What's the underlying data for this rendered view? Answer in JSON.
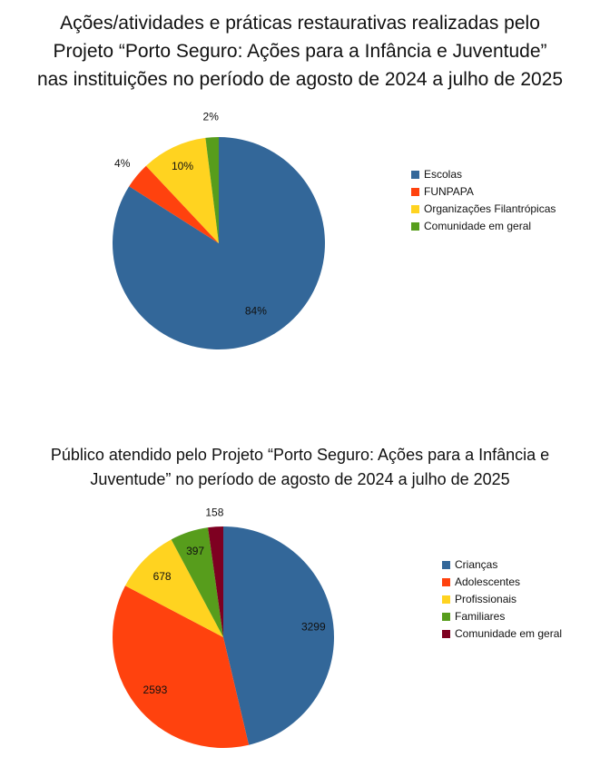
{
  "chart1": {
    "title_lines": [
      "Ações/atividades e práticas restaurativas realizadas pelo",
      "Projeto “Porto Seguro: Ações para a Infância e Juventude”",
      "nas instituições no período de agosto de 2024 a julho de 2025"
    ],
    "chart_data": {
      "type": "pie",
      "categories": [
        "Escolas",
        "FUNPAPA",
        "Organizações Filantrópicas",
        "Comunidade em geral"
      ],
      "values": [
        84,
        4,
        10,
        2
      ],
      "labels": [
        "84%",
        "4%",
        "10%",
        "2%"
      ],
      "colors": [
        "#336799",
        "#ff420e",
        "#ffd320",
        "#579d1c"
      ],
      "legend": "right"
    }
  },
  "chart2": {
    "title_lines": [
      "Público atendido pelo Projeto “Porto Seguro: Ações para a Infância e",
      "Juventude” no período de agosto de 2024 a julho de 2025"
    ],
    "chart_data": {
      "type": "pie",
      "categories": [
        "Crianças",
        "Adolescentes",
        "Profissionais",
        "Familiares",
        "Comunidade em geral"
      ],
      "values": [
        3299,
        2593,
        678,
        397,
        158
      ],
      "labels": [
        "3299",
        "2593",
        "678",
        "397",
        "158"
      ],
      "colors": [
        "#336799",
        "#ff420e",
        "#ffd320",
        "#579d1c",
        "#7e0021"
      ],
      "legend": "right"
    }
  }
}
